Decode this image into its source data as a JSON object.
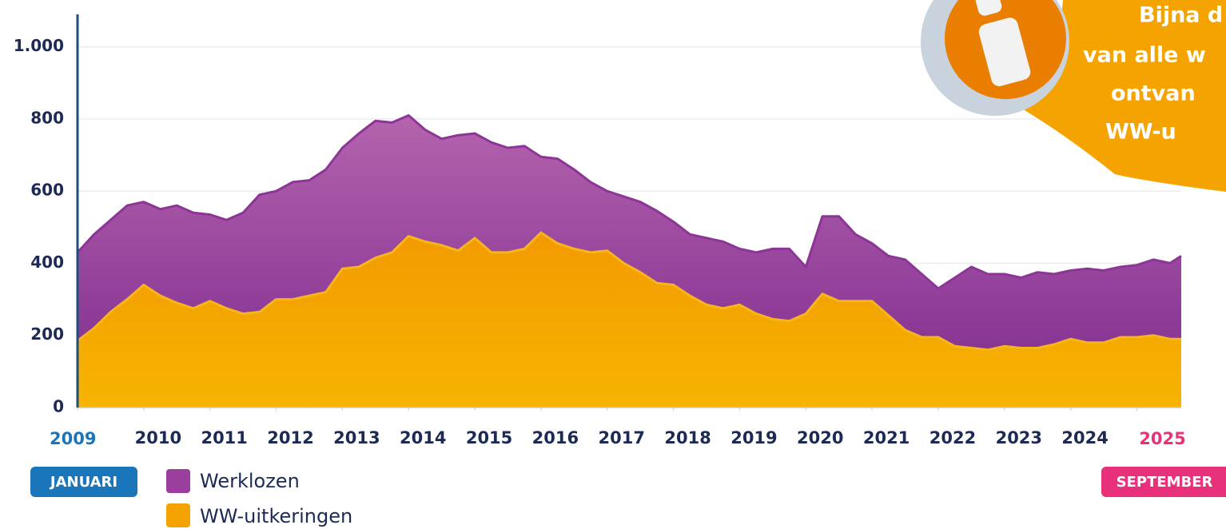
{
  "chart_data": {
    "type": "area",
    "start_label": "JANUARI",
    "end_label": "SEPTEMBER",
    "callout": [
      "Bijna d",
      "van alle w",
      "ontvan",
      "WW-u"
    ],
    "x": [
      2009.0,
      2009.25,
      2009.5,
      2009.75,
      2010.0,
      2010.25,
      2010.5,
      2010.75,
      2011.0,
      2011.25,
      2011.5,
      2011.75,
      2012.0,
      2012.25,
      2012.5,
      2012.75,
      2013.0,
      2013.25,
      2013.5,
      2013.75,
      2014.0,
      2014.25,
      2014.5,
      2014.75,
      2015.0,
      2015.25,
      2015.5,
      2015.75,
      2016.0,
      2016.25,
      2016.5,
      2016.75,
      2017.0,
      2017.25,
      2017.5,
      2017.75,
      2018.0,
      2018.25,
      2018.5,
      2018.75,
      2019.0,
      2019.25,
      2019.5,
      2019.75,
      2020.0,
      2020.25,
      2020.5,
      2020.75,
      2021.0,
      2021.25,
      2021.5,
      2021.75,
      2022.0,
      2022.25,
      2022.5,
      2022.75,
      2023.0,
      2023.25,
      2023.5,
      2023.75,
      2024.0,
      2024.25,
      2024.5,
      2024.75,
      2025.0,
      2025.25,
      2025.5,
      2025.67
    ],
    "series": [
      {
        "name": "Werklozen",
        "color": "#9b3f9e",
        "values": [
          430,
          480,
          520,
          560,
          570,
          550,
          560,
          540,
          535,
          520,
          540,
          590,
          600,
          625,
          630,
          660,
          720,
          760,
          795,
          790,
          810,
          770,
          745,
          755,
          760,
          735,
          720,
          725,
          695,
          690,
          660,
          625,
          600,
          585,
          570,
          545,
          515,
          480,
          470,
          460,
          440,
          430,
          440,
          440,
          390,
          530,
          530,
          480,
          455,
          420,
          410,
          370,
          330,
          360,
          390,
          370,
          370,
          360,
          375,
          370,
          380,
          385,
          380,
          390,
          395,
          410,
          400,
          420
        ]
      },
      {
        "name": "WW-uitkeringen",
        "color": "#f5a300",
        "values": [
          185,
          220,
          265,
          300,
          340,
          310,
          290,
          275,
          295,
          275,
          260,
          265,
          300,
          300,
          310,
          320,
          385,
          390,
          415,
          430,
          475,
          460,
          450,
          435,
          470,
          430,
          430,
          440,
          485,
          455,
          440,
          430,
          435,
          400,
          375,
          345,
          340,
          310,
          285,
          275,
          285,
          260,
          245,
          240,
          260,
          315,
          295,
          295,
          295,
          255,
          215,
          195,
          195,
          170,
          165,
          160,
          170,
          165,
          165,
          175,
          190,
          180,
          180,
          195,
          195,
          200,
          190,
          190
        ]
      }
    ],
    "xlim": [
      2009,
      2025.67
    ],
    "xticks": [
      2009,
      2010,
      2011,
      2012,
      2013,
      2014,
      2015,
      2016,
      2017,
      2018,
      2019,
      2020,
      2021,
      2022,
      2023,
      2024,
      2025
    ],
    "ylim": [
      0,
      1090
    ],
    "yticks": [
      0,
      200,
      400,
      600,
      800,
      {
        "value": 1000,
        "label": "1.000"
      }
    ],
    "grid": true
  }
}
